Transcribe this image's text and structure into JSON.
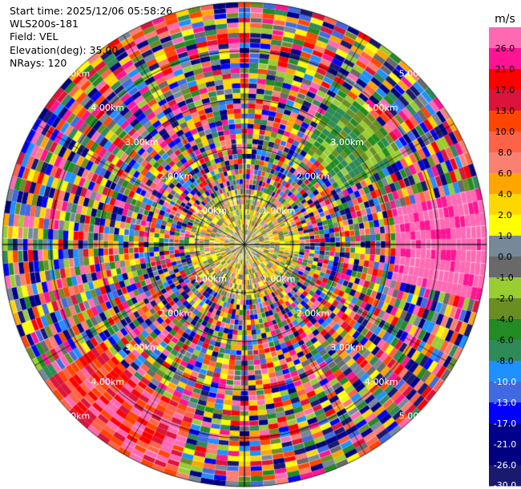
{
  "header": {
    "start_time": "Start time: 2025/12/06 05:58:26",
    "site": "WLS200s-181",
    "field": "Field: VEL",
    "elevation": "Elevation(deg): 35.00",
    "nrays": "NRays: 120"
  },
  "chart_data": {
    "type": "heatmap",
    "projection": "polar PPI",
    "field": "VEL",
    "units": "m/s",
    "nrays": 120,
    "elevation_deg": 35.0,
    "ring_labels": [
      "1.00km",
      "2.00km",
      "3.00km",
      "4.00km",
      "5.00km"
    ],
    "ring_ranges_km": [
      1,
      2,
      3,
      4,
      5
    ],
    "max_range_km": 5.0,
    "colorbar": {
      "label": "m/s",
      "tick_labels": [
        "26.0",
        "21.0",
        "17.0",
        "13.0",
        "10.0",
        "8.0",
        "6.0",
        "4.0",
        "2.0",
        "1.0",
        "0.0",
        "-1.0",
        "-2.0",
        "-4.0",
        "-6.0",
        "-8.0",
        "-10.0",
        "-13.0",
        "-17.0",
        "-21.0",
        "-26.0",
        "-30.0"
      ],
      "boundaries": [
        30,
        26,
        21,
        17,
        13,
        10,
        8,
        6,
        4,
        2,
        1,
        0,
        -1,
        -2,
        -4,
        -6,
        -8,
        -10,
        -13,
        -17,
        -21,
        -26,
        -30
      ],
      "colors": [
        "#ff69b4",
        "#ff1493",
        "#ff0000",
        "#dc143c",
        "#ff4500",
        "#ff6347",
        "#fa8072",
        "#ffa500",
        "#ffd700",
        "#ffff00",
        "#778899",
        "#696969",
        "#9acd32",
        "#6b8e23",
        "#228b22",
        "#2e8b57",
        "#1e90ff",
        "#4169e1",
        "#0000ff",
        "#00008b",
        "#000080",
        "#191970"
      ]
    }
  }
}
